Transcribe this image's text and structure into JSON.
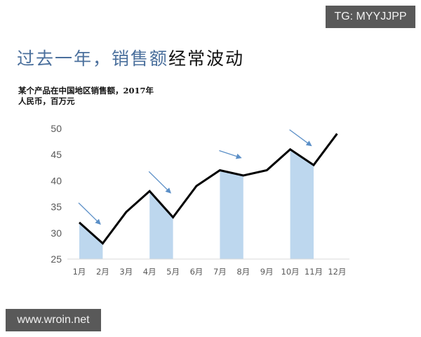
{
  "header": {
    "title_blue": "过去一年，销售额",
    "title_black": "经常波动",
    "subtitle_line1": "某个产品在中国地区销售额，2017年",
    "subtitle_line2": "人民币，百万元"
  },
  "watermarks": {
    "top_right": "TG: MYYJJPP",
    "bottom_left": "www.wroin.net"
  },
  "colors": {
    "line": "#000000",
    "highlight_fill": "#bdd7ee",
    "arrow": "#5b8fc7",
    "title_blue": "#4a6f9c",
    "axis_text": "#595959"
  },
  "chart_data": {
    "type": "line",
    "title": "过去一年，销售额经常波动",
    "subtitle": "某个产品在中国地区销售额，2017年",
    "ylabel": "人民币，百万元",
    "xlabel": "",
    "categories": [
      "1月",
      "2月",
      "3月",
      "4月",
      "5月",
      "6月",
      "7月",
      "8月",
      "9月",
      "10月",
      "11月",
      "12月"
    ],
    "values": [
      32,
      28,
      34,
      38,
      33,
      39,
      42,
      41,
      42,
      46,
      43,
      49
    ],
    "ylim": [
      25,
      50
    ],
    "yticks": [
      25,
      30,
      35,
      40,
      45,
      50
    ],
    "grid": false,
    "legend": null,
    "annotations": [
      {
        "type": "shaded_decline",
        "from": "1月",
        "to": "2月",
        "arrow": "down-right"
      },
      {
        "type": "shaded_decline",
        "from": "4月",
        "to": "5月",
        "arrow": "down-right"
      },
      {
        "type": "shaded_decline",
        "from": "7月",
        "to": "8月",
        "arrow": "down-right"
      },
      {
        "type": "shaded_decline",
        "from": "10月",
        "to": "11月",
        "arrow": "down-right"
      }
    ]
  }
}
